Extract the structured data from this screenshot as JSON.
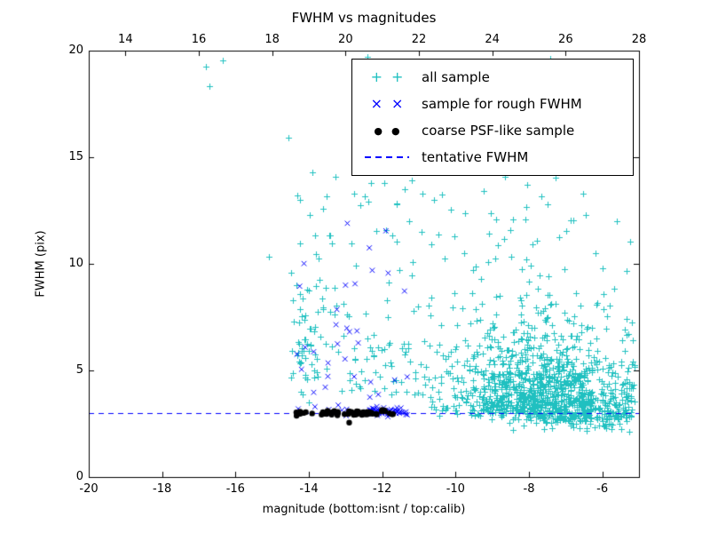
{
  "chart_data": {
    "type": "scatter",
    "title": "FWHM vs magnitudes",
    "xlabel": "magnitude (bottom:isnt / top:calib)",
    "ylabel": "FWHM (pix)",
    "x_bottom_axis": {
      "name": "isnt magnitude",
      "range": [
        -20,
        -5
      ],
      "ticks": [
        -20,
        -18,
        -16,
        -14,
        -12,
        -10,
        -8,
        -6
      ]
    },
    "x_top_axis": {
      "name": "calib magnitude",
      "range": [
        13,
        28
      ],
      "ticks": [
        14,
        16,
        18,
        20,
        22,
        24,
        26,
        28
      ]
    },
    "y_axis": {
      "name": "FWHM (pix)",
      "range": [
        0,
        20
      ],
      "ticks": [
        0,
        5,
        10,
        15,
        20
      ]
    },
    "grid": false,
    "tentative_fwhm": 3.0,
    "legend": {
      "position": "upper right",
      "entries": [
        {
          "label": "all sample",
          "marker": "plus",
          "glyph": "+",
          "color": "#20c0c0"
        },
        {
          "label": "sample for rough FWHM",
          "marker": "x",
          "glyph": "×",
          "color": "#0000ff"
        },
        {
          "label": "coarse PSF-like sample",
          "marker": "dot",
          "glyph": "●",
          "color": "#000000"
        },
        {
          "label": "tentative FWHM",
          "marker": "dashed-line",
          "glyph": "",
          "color": "#0000ff"
        }
      ]
    },
    "series": [
      {
        "name": "all sample",
        "marker": "plus",
        "color": "#20c0c0",
        "clusters": [
          {
            "n": 950,
            "x": {
              "dist": "gauss",
              "mean": -7.7,
              "sd": 1.25,
              "min": -11.8,
              "max": -5.05
            },
            "y": {
              "dist": "lognormal",
              "base": 2.3,
              "mu": 0.5,
              "sigma": 0.6,
              "min": 2.3,
              "max": 10
            }
          },
          {
            "n": 170,
            "x": {
              "dist": "gauss",
              "mean": -6.6,
              "sd": 1.0,
              "min": -8.6,
              "max": -5.05
            },
            "y": {
              "dist": "gauss",
              "mean": 2.85,
              "sd": 0.35,
              "min": 2.0,
              "max": 3.6
            }
          },
          {
            "n": 230,
            "x": {
              "dist": "uniform",
              "min": -14.5,
              "max": -5.1
            },
            "y": {
              "dist": "lognormal",
              "base": 3.0,
              "mu": 1.0,
              "sigma": 0.7,
              "min": 3.0,
              "max": 15.5
            }
          },
          {
            "n": 70,
            "x": {
              "dist": "uniform",
              "min": -13.6,
              "max": -5.2
            },
            "y": {
              "dist": "uniform",
              "min": 9.5,
              "max": 15.5
            }
          },
          {
            "n": 25,
            "x": {
              "dist": "uniform",
              "min": -12.5,
              "max": -5.4
            },
            "y": {
              "dist": "uniform",
              "min": 15.5,
              "max": 19.8
            }
          },
          {
            "n": 45,
            "x": {
              "dist": "uniform",
              "min": -14.35,
              "max": -13.6
            },
            "y": {
              "dist": "lognormal",
              "base": 3.0,
              "mu": 1.2,
              "sigma": 0.6,
              "min": 3.2,
              "max": 14.5
            }
          }
        ],
        "points": [
          [
            -16.8,
            19.25
          ],
          [
            -16.7,
            18.35
          ],
          [
            -15.1,
            10.35
          ],
          [
            -14.55,
            15.9
          ],
          [
            -13.9,
            14.3
          ],
          [
            -16.35,
            19.55
          ]
        ]
      },
      {
        "name": "sample for rough FWHM",
        "marker": "x",
        "color": "#0000ff",
        "clusters": [
          {
            "n": 55,
            "x": {
              "dist": "uniform",
              "min": -12.4,
              "max": -11.25
            },
            "y": {
              "dist": "gauss",
              "mean": 3.05,
              "sd": 0.1,
              "min": 2.8,
              "max": 3.4
            }
          },
          {
            "n": 10,
            "x": {
              "dist": "uniform",
              "min": -14.3,
              "max": -12.45
            },
            "y": {
              "dist": "gauss",
              "mean": 3.1,
              "sd": 0.15,
              "min": 2.85,
              "max": 3.5
            }
          },
          {
            "n": 26,
            "x": {
              "dist": "uniform",
              "min": -14.35,
              "max": -11.3
            },
            "y": {
              "dist": "lognormal",
              "base": 3.4,
              "mu": 1.0,
              "sigma": 0.75,
              "min": 3.6,
              "max": 12.2
            }
          }
        ],
        "points": [
          [
            -14.25,
            8.95
          ],
          [
            -14.2,
            5.05
          ],
          [
            -12.95,
            11.9
          ],
          [
            -11.9,
            11.55
          ],
          [
            -12.35,
            10.75
          ],
          [
            -13.0,
            9.0
          ]
        ]
      },
      {
        "name": "coarse PSF-like sample",
        "marker": "dot",
        "color": "#000000",
        "clusters": [
          {
            "n": 42,
            "x": {
              "dist": "uniform",
              "min": -14.35,
              "max": -12.35
            },
            "y": {
              "dist": "gauss",
              "mean": 3.0,
              "sd": 0.06,
              "min": 2.85,
              "max": 3.15
            }
          },
          {
            "n": 16,
            "x": {
              "dist": "uniform",
              "min": -12.6,
              "max": -11.55
            },
            "y": {
              "dist": "gauss",
              "mean": 3.0,
              "sd": 0.07,
              "min": 2.85,
              "max": 3.15
            }
          }
        ],
        "points": [
          [
            -12.9,
            2.55
          ]
        ]
      },
      {
        "name": "tentative FWHM",
        "marker": "dashed-line",
        "color": "#0000ff",
        "y": 3.0
      }
    ]
  }
}
